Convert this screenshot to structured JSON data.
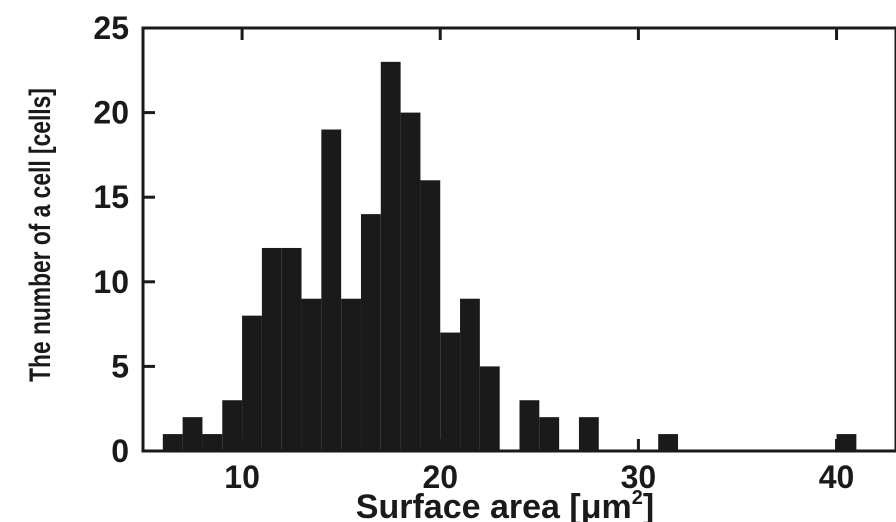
{
  "chart_data": {
    "type": "bar",
    "xlabel": "Surface area [μm",
    "xlabel_superscript": "2",
    "xlabel_suffix": "]",
    "ylabel": "The number of a cell [cells]",
    "xlim": [
      5,
      43
    ],
    "ylim": [
      0,
      25
    ],
    "x_ticks": [
      10,
      20,
      30,
      40
    ],
    "y_ticks": [
      0,
      5,
      10,
      15,
      20,
      25
    ],
    "bin_width": 1,
    "bins": [
      {
        "x": 6,
        "count": 1
      },
      {
        "x": 7,
        "count": 2
      },
      {
        "x": 8,
        "count": 1
      },
      {
        "x": 9,
        "count": 3
      },
      {
        "x": 10,
        "count": 8
      },
      {
        "x": 11,
        "count": 12
      },
      {
        "x": 12,
        "count": 12
      },
      {
        "x": 13,
        "count": 9
      },
      {
        "x": 14,
        "count": 19
      },
      {
        "x": 15,
        "count": 9
      },
      {
        "x": 16,
        "count": 14
      },
      {
        "x": 17,
        "count": 23
      },
      {
        "x": 18,
        "count": 20
      },
      {
        "x": 19,
        "count": 16
      },
      {
        "x": 20,
        "count": 7
      },
      {
        "x": 21,
        "count": 9
      },
      {
        "x": 22,
        "count": 5
      },
      {
        "x": 24,
        "count": 3
      },
      {
        "x": 25,
        "count": 2
      },
      {
        "x": 27,
        "count": 2
      },
      {
        "x": 31,
        "count": 1
      },
      {
        "x": 40,
        "count": 1
      }
    ],
    "bar_color": "#1a1a1a"
  }
}
